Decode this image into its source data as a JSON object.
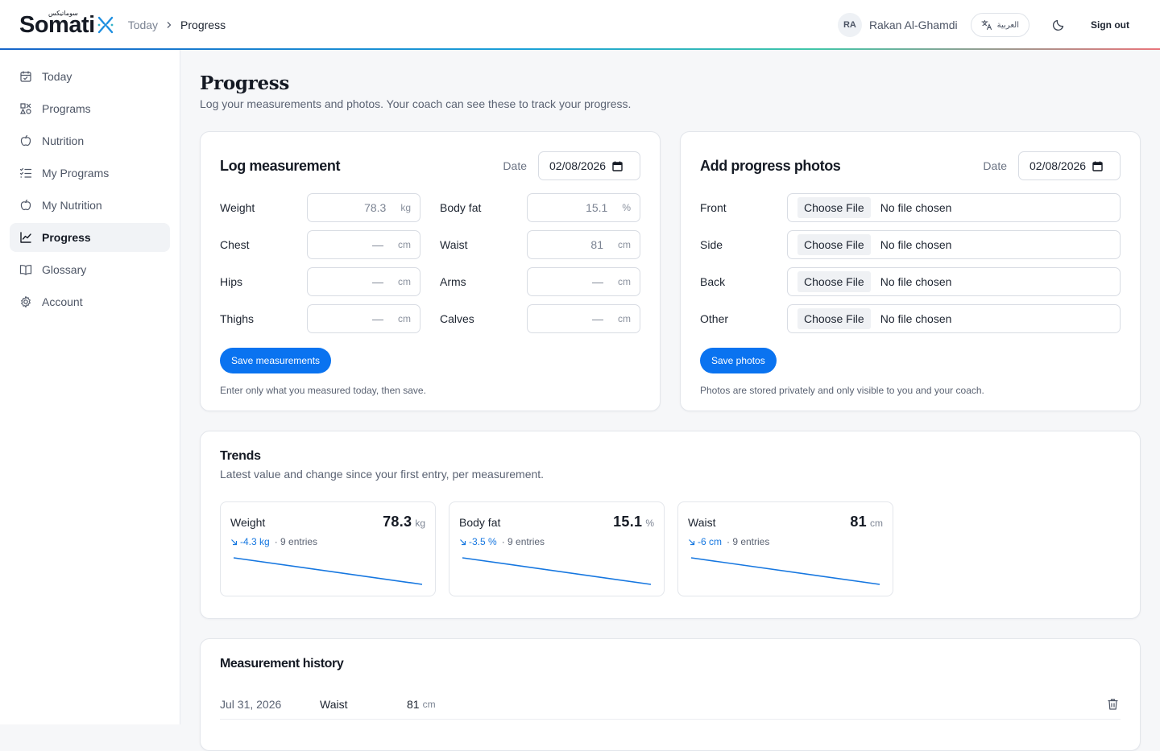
{
  "app": {
    "logo_text": "Somati",
    "logo_tagline": "سوماتيكس"
  },
  "breadcrumb": {
    "root": "Today",
    "current": "Progress"
  },
  "user": {
    "initials": "RA",
    "name": "Rakan Al-Ghamdi",
    "language_label": "العربية",
    "sign_out": "Sign out"
  },
  "sidebar": {
    "items": [
      {
        "label": "Today",
        "icon": "calendar-icon",
        "active": false
      },
      {
        "label": "Programs",
        "icon": "shapes-icon",
        "active": false
      },
      {
        "label": "Nutrition",
        "icon": "apple-icon",
        "active": false
      },
      {
        "label": "My Programs",
        "icon": "list-checks-icon",
        "active": false
      },
      {
        "label": "My Nutrition",
        "icon": "apple-icon",
        "active": false
      },
      {
        "label": "Progress",
        "icon": "line-chart-icon",
        "active": true
      },
      {
        "label": "Glossary",
        "icon": "book-icon",
        "active": false
      },
      {
        "label": "Account",
        "icon": "gear-icon",
        "active": false
      }
    ]
  },
  "page": {
    "title": "Progress",
    "subtitle": "Log your measurements and photos. Your coach can see these to track your progress."
  },
  "log_measurement": {
    "title": "Log measurement",
    "date_label": "Date",
    "date_value": "02/08/2026",
    "fields": [
      {
        "label": "Weight",
        "value": "78.3",
        "unit": "kg"
      },
      {
        "label": "Body fat",
        "value": "15.1",
        "unit": "%"
      },
      {
        "label": "Chest",
        "value": "—",
        "unit": "cm"
      },
      {
        "label": "Waist",
        "value": "81",
        "unit": "cm"
      },
      {
        "label": "Hips",
        "value": "—",
        "unit": "cm"
      },
      {
        "label": "Arms",
        "value": "—",
        "unit": "cm"
      },
      {
        "label": "Thighs",
        "value": "—",
        "unit": "cm"
      },
      {
        "label": "Calves",
        "value": "—",
        "unit": "cm"
      }
    ],
    "save_label": "Save measurements",
    "hint": "Enter only what you measured today, then save."
  },
  "progress_photos": {
    "title": "Add progress photos",
    "date_label": "Date",
    "date_value": "02/08/2026",
    "slots": [
      {
        "label": "Front",
        "button": "Choose File",
        "status": "No file chosen"
      },
      {
        "label": "Side",
        "button": "Choose File",
        "status": "No file chosen"
      },
      {
        "label": "Back",
        "button": "Choose File",
        "status": "No file chosen"
      },
      {
        "label": "Other",
        "button": "Choose File",
        "status": "No file chosen"
      }
    ],
    "save_label": "Save photos",
    "hint": "Photos are stored privately and only visible to you and your coach."
  },
  "trends": {
    "title": "Trends",
    "subtitle": "Latest value and change since your first entry, per measurement.",
    "cards": [
      {
        "name": "Weight",
        "value": "78.3",
        "unit": "kg",
        "delta": "-4.3 kg",
        "entries": "· 9 entries"
      },
      {
        "name": "Body fat",
        "value": "15.1",
        "unit": "%",
        "delta": "-3.5 %",
        "entries": "· 9 entries"
      },
      {
        "name": "Waist",
        "value": "81",
        "unit": "cm",
        "delta": "-6 cm",
        "entries": "· 9 entries"
      }
    ]
  },
  "history": {
    "title": "Measurement history",
    "rows": [
      {
        "date": "Jul 31, 2026",
        "name": "Waist",
        "value": "81",
        "unit": "cm"
      }
    ]
  },
  "colors": {
    "accent": "#0a73f0",
    "trend_line": "#1677e0"
  }
}
